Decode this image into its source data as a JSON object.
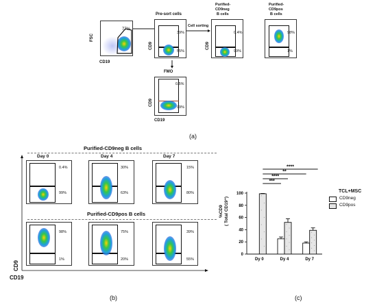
{
  "panel_a": {
    "axes": {
      "fsc": "FSC",
      "cd19": "CD19",
      "cd9": "CD9"
    },
    "main_gate_pct": "77%",
    "presort": {
      "title": "Pre-sort cells",
      "top_pct": "39%",
      "bottom_pct": "55%"
    },
    "arrow_label": "Cell sorting",
    "cd9neg": {
      "title_l1": "Purified-",
      "title_l2": "CD9neg",
      "title_l3": "B cells",
      "top_pct": "0.4%",
      "bottom_pct": "99%"
    },
    "cd9pos": {
      "title_l1": "Purified-",
      "title_l2": "CD9pos",
      "title_l3": "B cells",
      "top_pct": "98%",
      "bottom_pct": "1%"
    },
    "fmo": {
      "title": "FMO",
      "top_pct": "0.5%",
      "bottom_pct": "99%"
    },
    "caption": "(a)"
  },
  "panel_b": {
    "group1_title": "Purified-CD9neg B cells",
    "group2_title": "Purified-CD9pos B cells",
    "days": [
      "Day 0",
      "Day 4",
      "Day 7"
    ],
    "row1": [
      {
        "top": "0.4%",
        "bottom": "99%"
      },
      {
        "top": "30%",
        "bottom": "63%"
      },
      {
        "top": "15%",
        "bottom": "80%"
      }
    ],
    "row2": [
      {
        "top": "98%",
        "bottom": "1%"
      },
      {
        "top": "75%",
        "bottom": "20%"
      },
      {
        "top": "39%",
        "bottom": "55%"
      }
    ],
    "yaxis": "CD9",
    "xaxis": "CD19",
    "caption": "(b)"
  },
  "panel_c": {
    "caption": "(c)",
    "chart_data": {
      "type": "bar",
      "categories": [
        "Dy 0",
        "Dy 4",
        "Dy 7"
      ],
      "series": [
        {
          "name": "CD9neg",
          "values": [
            0,
            25,
            18
          ],
          "errors": [
            0,
            3,
            2
          ]
        },
        {
          "name": "CD9pos",
          "values": [
            99,
            52,
            39
          ],
          "errors": [
            0.5,
            6,
            4
          ]
        }
      ],
      "ylabel_l1": "%CD9",
      "ylabel_l2": "( Total CD19⁺)",
      "ylim": [
        0,
        100
      ],
      "yticks": [
        "0",
        "20",
        "40",
        "60",
        "80",
        "100"
      ],
      "legend_title": "TCL+MSC",
      "significance": [
        "***",
        "****",
        "**",
        "****"
      ],
      "colors": {
        "cd9neg": "#ffffff",
        "cd9pos": "#e6e6e6",
        "stroke": "#111111"
      }
    }
  }
}
